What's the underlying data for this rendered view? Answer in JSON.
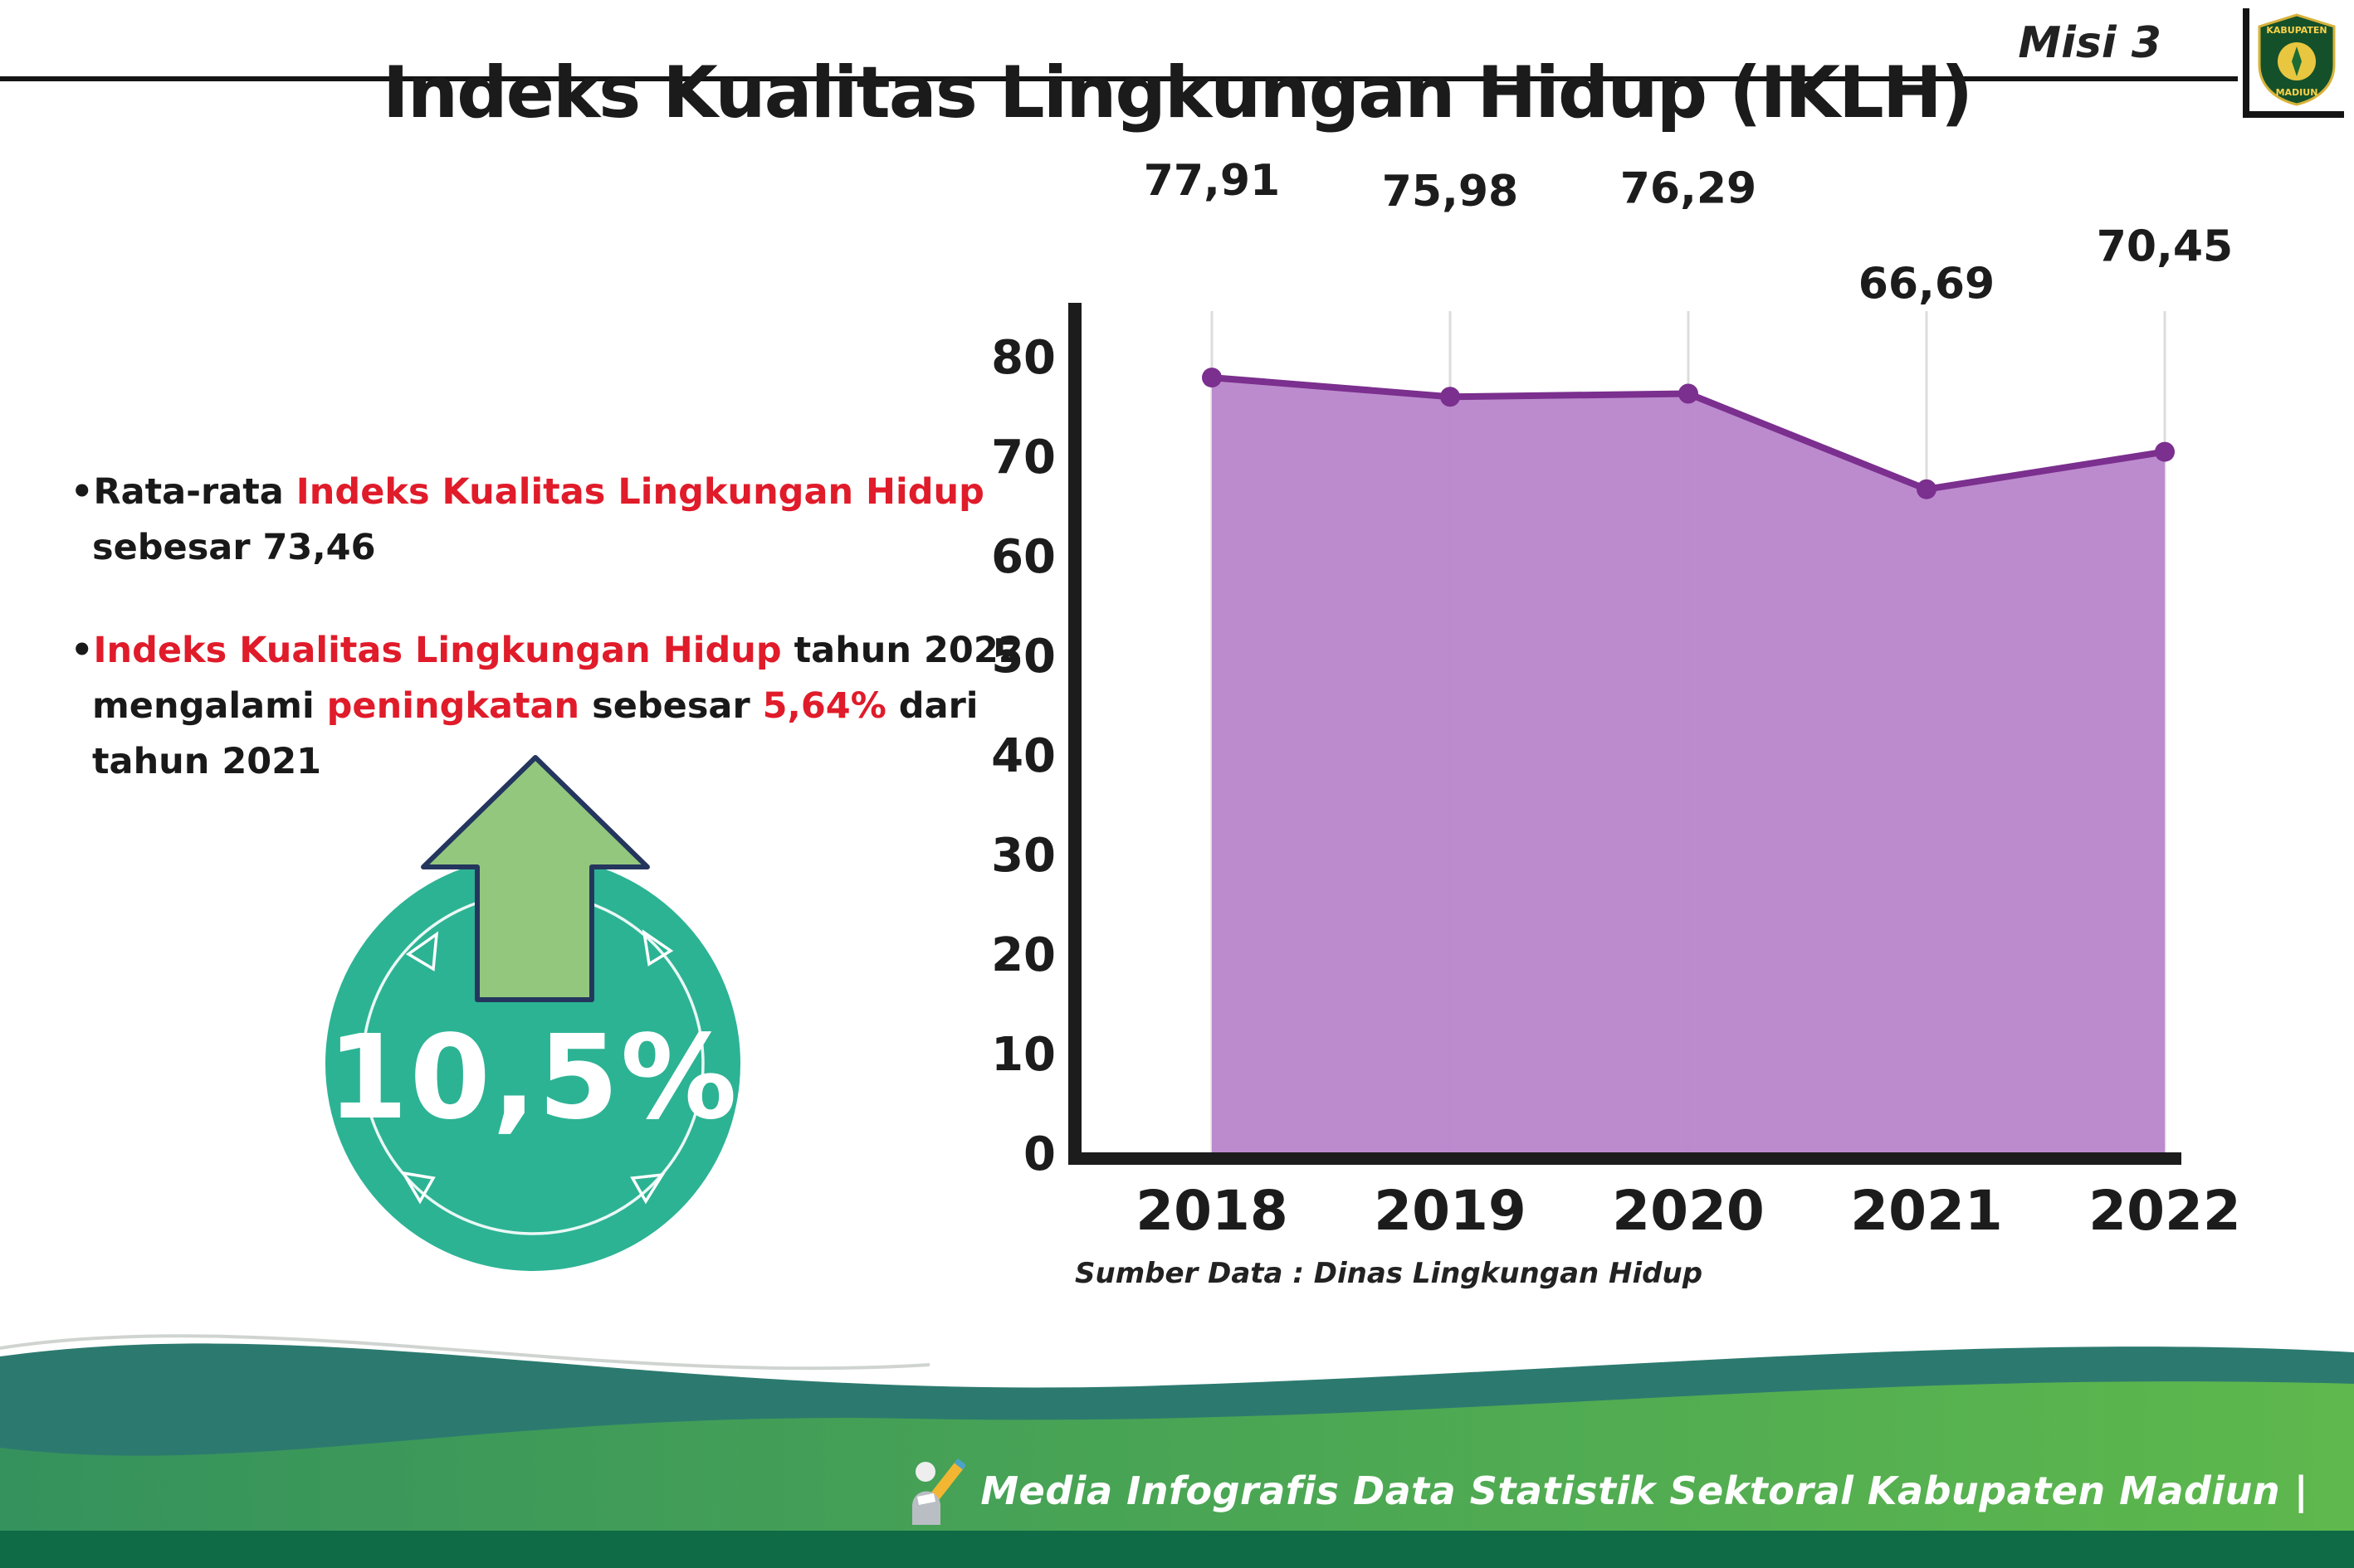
{
  "page": {
    "misi_label": "Misi 3",
    "title": "Indeks Kualitas Lingkungan Hidup (IKLH)"
  },
  "logo": {
    "name": "Kabupaten Madiun",
    "text_top": "KABUPATEN",
    "text_bottom": "MADIUN"
  },
  "bullets": [
    {
      "lines": [
        {
          "segments": [
            {
              "text": "•Rata-rata ",
              "style": "dark"
            },
            {
              "text": "Indeks Kualitas Lingkungan Hidup",
              "style": "red"
            }
          ]
        },
        {
          "segments": [
            {
              "text": "sebesar 73,46",
              "style": "dark"
            }
          ]
        }
      ]
    },
    {
      "lines": [
        {
          "segments": [
            {
              "text": "•",
              "style": "dark"
            },
            {
              "text": "Indeks Kualitas Lingkungan Hidup",
              "style": "red"
            },
            {
              "text": " tahun 2022",
              "style": "dark"
            }
          ]
        },
        {
          "segments": [
            {
              "text": "mengalami ",
              "style": "dark"
            },
            {
              "text": "peningkatan",
              "style": "red"
            },
            {
              "text": " sebesar ",
              "style": "dark"
            },
            {
              "text": "5,64%",
              "style": "red"
            },
            {
              "text": " dari",
              "style": "dark"
            }
          ]
        },
        {
          "segments": [
            {
              "text": "tahun 2021",
              "style": "dark"
            }
          ]
        }
      ]
    }
  ],
  "badge": {
    "value": "10,5%"
  },
  "chart_data": {
    "type": "area",
    "title": "Indeks Kualitas Lingkungan Hidup (IKLH)",
    "categories": [
      "2018",
      "2019",
      "2020",
      "2021",
      "2022"
    ],
    "values": [
      77.91,
      75.98,
      76.29,
      66.69,
      70.45
    ],
    "point_labels": [
      "77,91",
      "75,98",
      "76,29",
      "66,69",
      "70,45"
    ],
    "xlabel": "",
    "ylabel": "",
    "ylim": [
      0,
      80
    ],
    "ytick_step": 10,
    "grid": "vertical-light",
    "legend": "none",
    "source_note": "Sumber Data : Dinas Lingkungan Hidup"
  },
  "footer": {
    "credit": "Media Infografis Data Statistik Sektoral Kabupaten Madiun |"
  },
  "colors": {
    "accent_red": "#e01b2a",
    "text_dark": "#191919",
    "area_fill": "#b885cb",
    "line_purple": "#7b2f8e",
    "badge_teal": "#2cb394",
    "arrow_green": "#93c77e",
    "arrow_outline": "#24365e",
    "footer_teal": "#2c7a6f",
    "footer_green_a": "#35925c",
    "footer_green_b": "#5eb84d",
    "footer_dark": "#0e6b46"
  }
}
